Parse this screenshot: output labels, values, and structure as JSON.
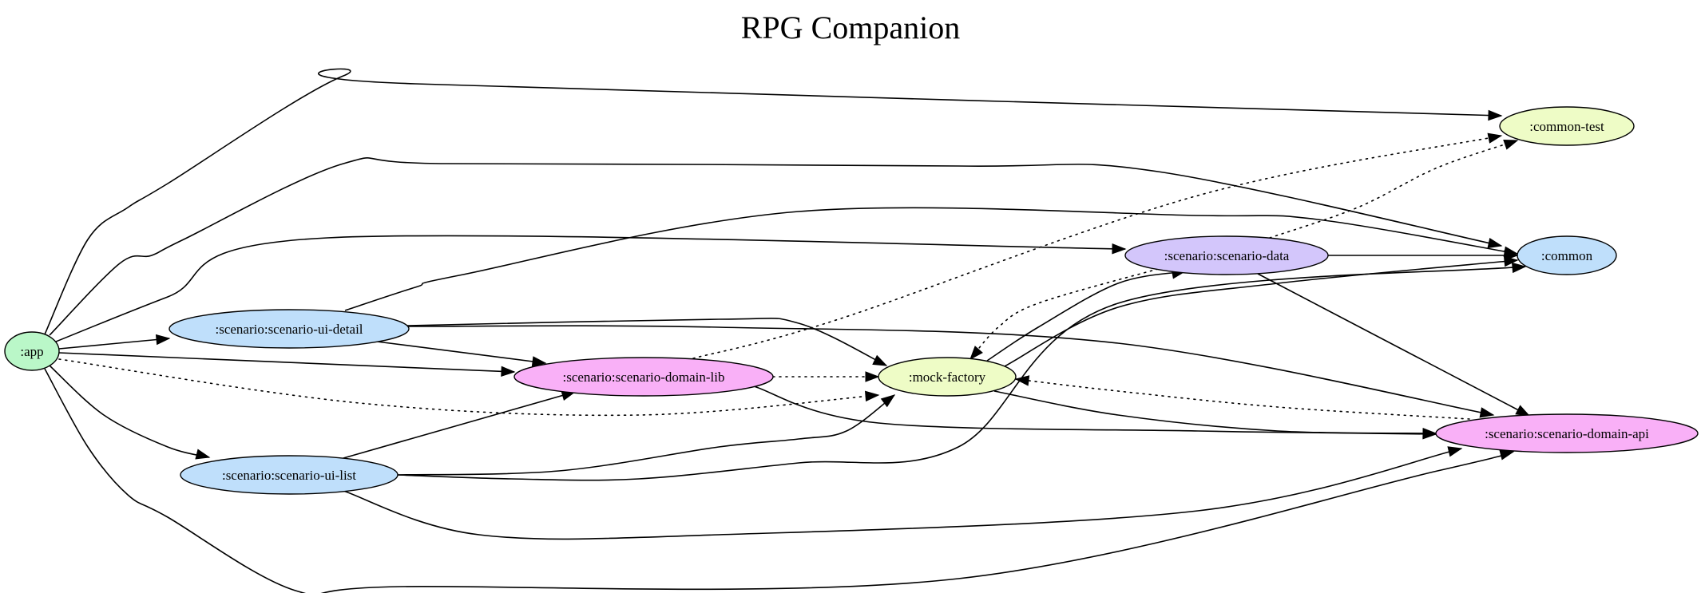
{
  "title": "RPG Companion",
  "nodes": [
    {
      "id": "app",
      "label": ":app",
      "color": "#baf7c8"
    },
    {
      "id": "common_test",
      "label": ":common-test",
      "color": "#eefcc6"
    },
    {
      "id": "common",
      "label": ":common",
      "color": "#bfdffb"
    },
    {
      "id": "scenario_data",
      "label": ":scenario:scenario-data",
      "color": "#d3c6fb"
    },
    {
      "id": "ui_detail",
      "label": ":scenario:scenario-ui-detail",
      "color": "#bfdffb"
    },
    {
      "id": "domain_lib",
      "label": ":scenario:scenario-domain-lib",
      "color": "#f9b0f7"
    },
    {
      "id": "mock_factory",
      "label": ":mock-factory",
      "color": "#eefcc6"
    },
    {
      "id": "ui_list",
      "label": ":scenario:scenario-ui-list",
      "color": "#bfdffb"
    },
    {
      "id": "domain_api",
      "label": ":scenario:scenario-domain-api",
      "color": "#f9b0f7"
    }
  ],
  "edges": [
    {
      "from": "app",
      "to": "common_test",
      "style": "solid"
    },
    {
      "from": "app",
      "to": "common",
      "style": "solid"
    },
    {
      "from": "app",
      "to": "scenario_data",
      "style": "solid"
    },
    {
      "from": "app",
      "to": "ui_detail",
      "style": "solid"
    },
    {
      "from": "app",
      "to": "domain_lib",
      "style": "solid"
    },
    {
      "from": "app",
      "to": "mock_factory",
      "style": "dotted"
    },
    {
      "from": "app",
      "to": "ui_list",
      "style": "solid"
    },
    {
      "from": "app",
      "to": "domain_api",
      "style": "solid"
    },
    {
      "from": "ui_detail",
      "to": "common",
      "style": "solid"
    },
    {
      "from": "ui_detail",
      "to": "domain_lib",
      "style": "solid"
    },
    {
      "from": "ui_detail",
      "to": "mock_factory",
      "style": "solid"
    },
    {
      "from": "ui_detail",
      "to": "domain_api",
      "style": "solid"
    },
    {
      "from": "domain_lib",
      "to": "common_test",
      "style": "dotted"
    },
    {
      "from": "domain_lib",
      "to": "mock_factory",
      "style": "dotted"
    },
    {
      "from": "domain_lib",
      "to": "domain_api",
      "style": "solid"
    },
    {
      "from": "ui_list",
      "to": "domain_lib",
      "style": "solid"
    },
    {
      "from": "ui_list",
      "to": "mock_factory",
      "style": "solid"
    },
    {
      "from": "ui_list",
      "to": "common",
      "style": "solid"
    },
    {
      "from": "ui_list",
      "to": "domain_api",
      "style": "solid"
    },
    {
      "from": "mock_factory",
      "to": "scenario_data",
      "style": "solid"
    },
    {
      "from": "mock_factory",
      "to": "common",
      "style": "solid"
    },
    {
      "from": "mock_factory",
      "to": "domain_api",
      "style": "solid"
    },
    {
      "from": "scenario_data",
      "to": "common",
      "style": "solid"
    },
    {
      "from": "scenario_data",
      "to": "domain_api",
      "style": "solid"
    },
    {
      "from": "scenario_data",
      "to": "common_test",
      "style": "dotted"
    },
    {
      "from": "scenario_data",
      "to": "mock_factory",
      "style": "dotted"
    },
    {
      "from": "domain_api",
      "to": "mock_factory",
      "style": "dotted"
    }
  ]
}
